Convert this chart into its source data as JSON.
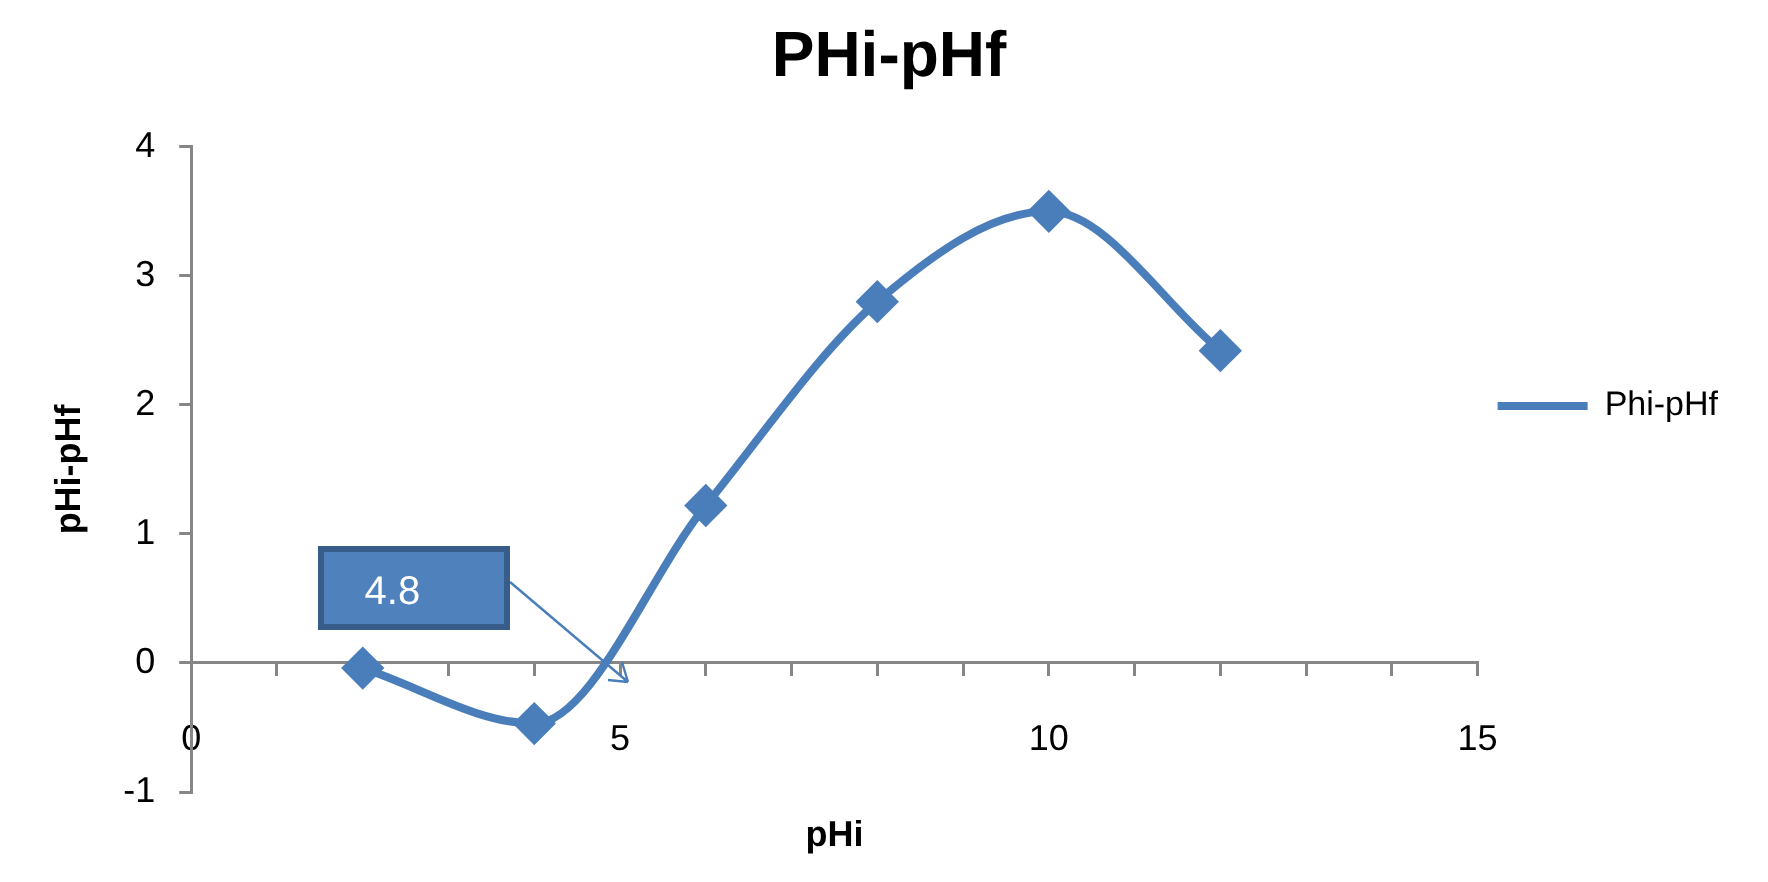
{
  "chart_data": {
    "type": "line",
    "title": "PHi-pHf",
    "xlabel": "pHi",
    "ylabel": "pHi-pHf",
    "x": [
      2,
      4,
      6,
      8,
      10,
      12
    ],
    "series": [
      {
        "name": "Phi-pHf",
        "color": "#4a7ebb",
        "values": [
          -0.04,
          -0.47,
          1.22,
          2.8,
          3.5,
          2.42
        ]
      }
    ],
    "xlim": [
      0,
      15
    ],
    "xticks": [
      0,
      {
        "value": 1,
        "label": null
      },
      {
        "value": 2,
        "label": null
      },
      {
        "value": 3,
        "label": null
      },
      {
        "value": 4,
        "label": null
      },
      5,
      {
        "value": 6,
        "label": null
      },
      {
        "value": 7,
        "label": null
      },
      {
        "value": 8,
        "label": null
      },
      {
        "value": 9,
        "label": null
      },
      10,
      {
        "value": 11,
        "label": null
      },
      {
        "value": 12,
        "label": null
      },
      {
        "value": 13,
        "label": null
      },
      {
        "value": 14,
        "label": null
      },
      15
    ],
    "ylim": [
      -1,
      4
    ],
    "yticks": [
      -1,
      0,
      1,
      2,
      3,
      4
    ],
    "annotations": [
      "4.8"
    ],
    "grid": false,
    "legend": "right",
    "marker": "diamond",
    "line_style": "solid"
  }
}
